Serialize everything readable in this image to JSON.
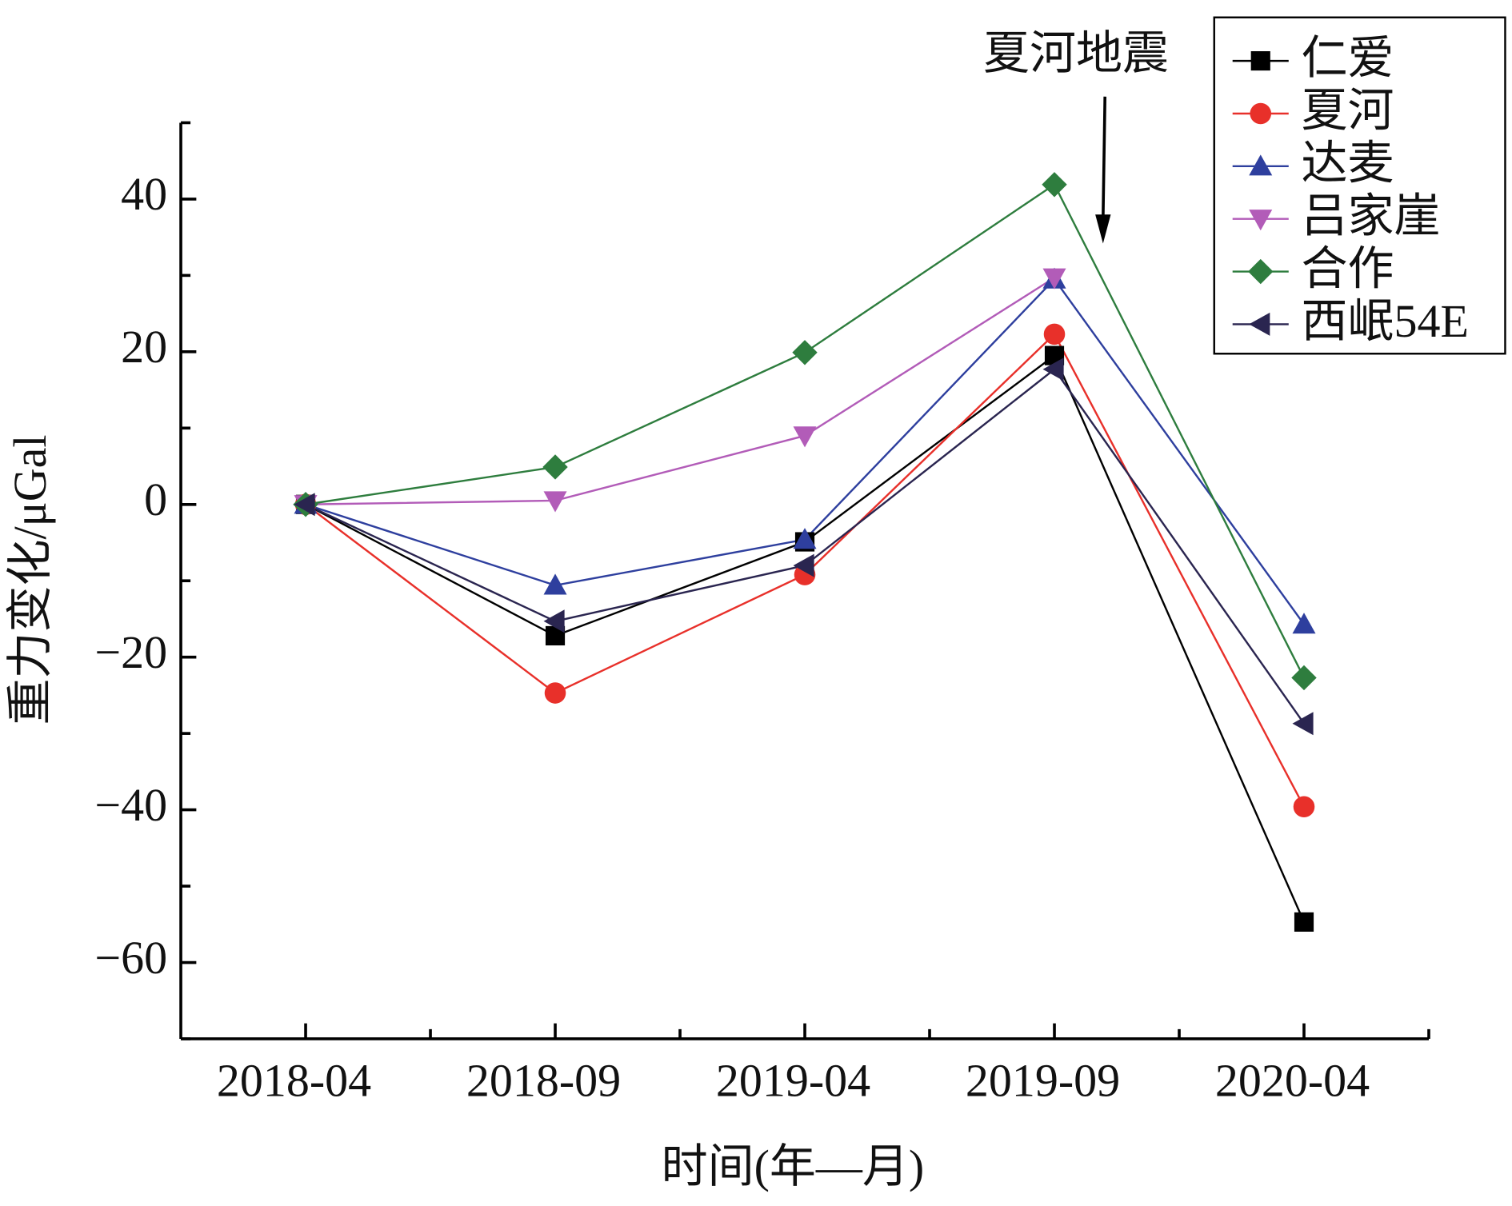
{
  "chart_data": {
    "type": "line",
    "y_label": "重力变化/μGal",
    "x_label": "时间(年—月)",
    "annotation": "夏河地震",
    "categories": [
      "2018-04",
      "2018-09",
      "2019-04",
      "2019-09",
      "2020-04"
    ],
    "series": [
      {
        "name": "仁爱",
        "color": "#000000",
        "marker": "square",
        "values": [
          0,
          -17.2,
          -4.9,
          19.5,
          -54.7
        ]
      },
      {
        "name": "夏河",
        "color": "#e8302a",
        "marker": "circle",
        "values": [
          0,
          -24.7,
          -9.2,
          22.3,
          -39.6
        ]
      },
      {
        "name": "达麦",
        "color": "#2e3f9e",
        "marker": "triangle-up",
        "values": [
          0,
          -10.6,
          -4.6,
          29.5,
          -15.7
        ]
      },
      {
        "name": "吕家崖",
        "color": "#b25cb8",
        "marker": "triangle-down",
        "values": [
          0,
          0.5,
          9,
          29.7,
          null
        ]
      },
      {
        "name": "合作",
        "color": "#2e7d3e",
        "marker": "diamond",
        "values": [
          0,
          4.9,
          19.9,
          41.9,
          -22.7
        ]
      },
      {
        "name": "西岷54E",
        "color": "#2a2550",
        "marker": "triangle-left",
        "values": [
          0,
          -15.3,
          -8.0,
          17.7,
          -28.7
        ]
      }
    ],
    "ylim": [
      -70,
      50
    ],
    "yticks": [
      {
        "value": -60,
        "label": "−60"
      },
      {
        "value": -40,
        "label": "−40"
      },
      {
        "value": -20,
        "label": "−20"
      },
      0,
      20,
      40
    ],
    "yminorticks": [
      -70,
      -50,
      -30,
      -10,
      10,
      30,
      50
    ],
    "legend": "top-right"
  }
}
